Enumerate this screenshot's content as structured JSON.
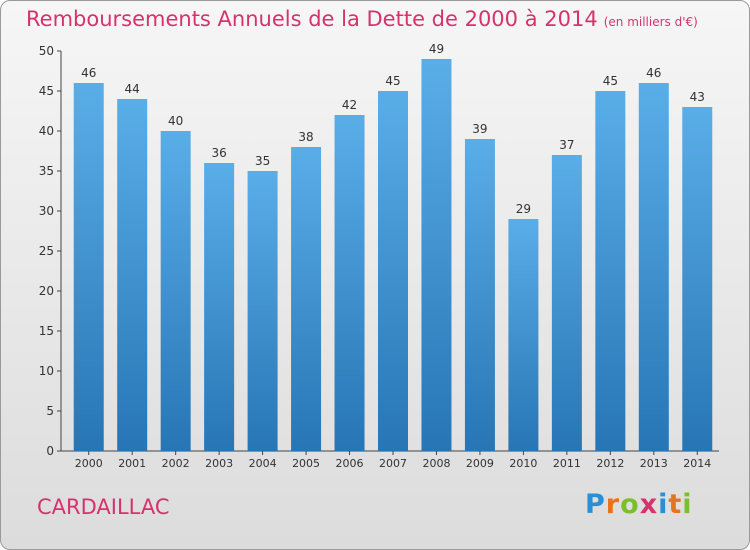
{
  "title": "Remboursements Annuels de la Dette de 2000 à 2014",
  "unit": "(en milliers d'€)",
  "town": "CARDAILLAC",
  "logo": {
    "letters": [
      "P",
      "r",
      "o",
      "x",
      "i",
      "t",
      "i"
    ],
    "colors": [
      "#2a8fd6",
      "#e8731d",
      "#7bbf2a",
      "#d6326d",
      "#2a8fd6",
      "#e8731d",
      "#7bbf2a"
    ]
  },
  "colors": {
    "bar_top": "#5aaee8",
    "bar_bottom": "#2775b5",
    "title": "#d6326d",
    "axis": "#444444"
  },
  "chart_data": {
    "type": "bar",
    "title": "Remboursements Annuels de la Dette de 2000 à 2014",
    "unit": "(en milliers d'€)",
    "categories": [
      "2000",
      "2001",
      "2002",
      "2003",
      "2004",
      "2005",
      "2006",
      "2007",
      "2008",
      "2009",
      "2010",
      "2011",
      "2012",
      "2013",
      "2014"
    ],
    "values": [
      46,
      44,
      40,
      36,
      35,
      38,
      42,
      45,
      49,
      39,
      29,
      37,
      45,
      46,
      43
    ],
    "ylim": [
      0,
      50
    ],
    "yticks": [
      0,
      5,
      10,
      15,
      20,
      25,
      30,
      35,
      40,
      45,
      50
    ],
    "grid": false,
    "data_labels": true
  }
}
